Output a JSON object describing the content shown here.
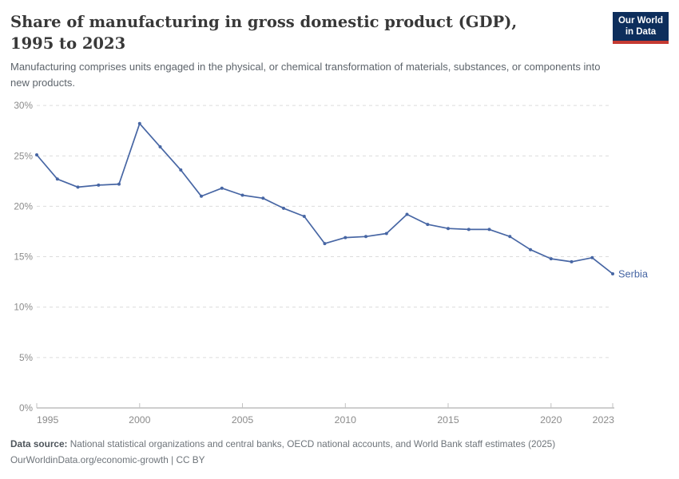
{
  "header": {
    "title": "Share of manufacturing in gross domestic product (GDP), 1995 to 2023",
    "subtitle": "Manufacturing comprises units engaged in the physical, or chemical transformation of materials, substances, or components into new products.",
    "logo": {
      "line1": "Our World",
      "line2": "in Data"
    }
  },
  "colors": {
    "line_blue": "#4766a4",
    "logo_navy": "#0d2e5c",
    "logo_red": "#c53a32",
    "grid": "#dcdcdc",
    "axis": "#9d9d9d",
    "axis_tick": "#c2c2c2",
    "tick_label": "#8b8b8b"
  },
  "chart_data": {
    "type": "line",
    "title": "Share of manufacturing in gross domestic product (GDP), 1995 to 2023",
    "xlabel": "",
    "ylabel": "",
    "xlim": [
      1995,
      2023
    ],
    "ylim": [
      0,
      30
    ],
    "grid": "horizontal dashed",
    "legend_position": "end-of-line label",
    "x": [
      1995,
      1996,
      1997,
      1998,
      1999,
      2000,
      2001,
      2002,
      2003,
      2004,
      2005,
      2006,
      2007,
      2008,
      2009,
      2010,
      2011,
      2012,
      2013,
      2014,
      2015,
      2016,
      2017,
      2018,
      2019,
      2020,
      2021,
      2022,
      2023
    ],
    "series": [
      {
        "name": "Serbia",
        "values": [
          25.1,
          22.7,
          21.9,
          22.1,
          22.2,
          28.2,
          25.9,
          23.6,
          21.0,
          21.8,
          21.1,
          20.8,
          19.8,
          19.0,
          16.3,
          16.9,
          17.0,
          17.3,
          19.2,
          18.2,
          17.8,
          17.7,
          17.7,
          17.0,
          15.7,
          14.8,
          14.5,
          14.9,
          13.3
        ]
      }
    ],
    "y_ticks": [
      {
        "value": 0,
        "label": "0%"
      },
      {
        "value": 5,
        "label": "5%"
      },
      {
        "value": 10,
        "label": "10%"
      },
      {
        "value": 15,
        "label": "15%"
      },
      {
        "value": 20,
        "label": "20%"
      },
      {
        "value": 25,
        "label": "25%"
      },
      {
        "value": 30,
        "label": "30%"
      }
    ],
    "x_ticks": [
      {
        "value": 1995,
        "label": "1995"
      },
      {
        "value": 2000,
        "label": "2000"
      },
      {
        "value": 2005,
        "label": "2005"
      },
      {
        "value": 2010,
        "label": "2010"
      },
      {
        "value": 2015,
        "label": "2015"
      },
      {
        "value": 2020,
        "label": "2020"
      },
      {
        "value": 2023,
        "label": "2023"
      }
    ]
  },
  "footer": {
    "source_label": "Data source:",
    "source_text": "National statistical organizations and central banks, OECD national accounts, and World Bank staff estimates (2025)",
    "url": "OurWorldinData.org/economic-growth",
    "separator": "|",
    "license": "CC BY"
  }
}
